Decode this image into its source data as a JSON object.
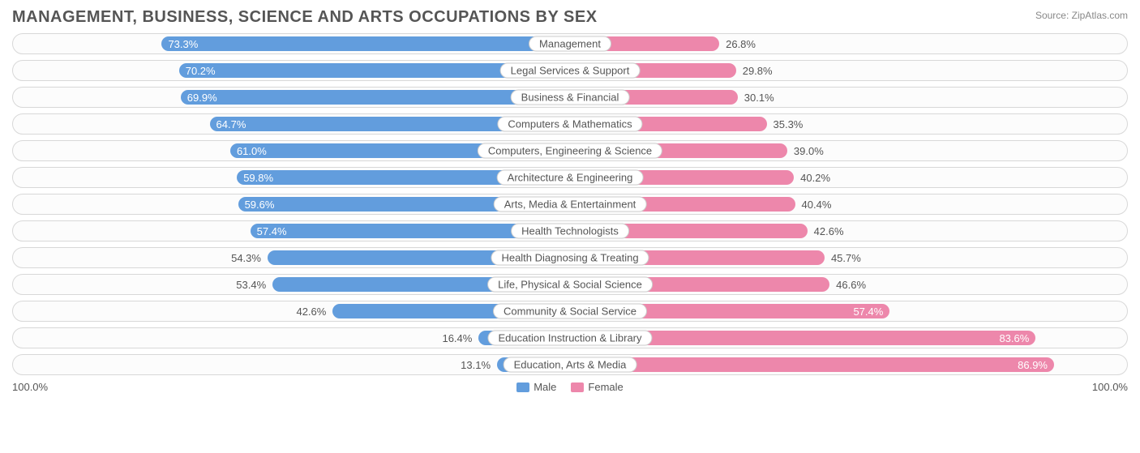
{
  "title": "MANAGEMENT, BUSINESS, SCIENCE AND ARTS OCCUPATIONS BY SEX",
  "source_label": "Source:",
  "source_name": "ZipAtlas.com",
  "axis_left": "100.0%",
  "axis_right": "100.0%",
  "legend": {
    "male": {
      "label": "Male",
      "color": "#629ddd"
    },
    "female": {
      "label": "Female",
      "color": "#ed87ab"
    }
  },
  "style": {
    "row_bg": "#fcfcfc",
    "row_border": "#d8d8d8",
    "catlabel_border": "#cccccc",
    "text_color": "#555555",
    "inside_threshold": 55.0,
    "font_size_title": 20,
    "font_size_body": 13
  },
  "rows": [
    {
      "category": "Management",
      "male": 73.3,
      "female": 26.8
    },
    {
      "category": "Legal Services & Support",
      "male": 70.2,
      "female": 29.8
    },
    {
      "category": "Business & Financial",
      "male": 69.9,
      "female": 30.1
    },
    {
      "category": "Computers & Mathematics",
      "male": 64.7,
      "female": 35.3
    },
    {
      "category": "Computers, Engineering & Science",
      "male": 61.0,
      "female": 39.0
    },
    {
      "category": "Architecture & Engineering",
      "male": 59.8,
      "female": 40.2
    },
    {
      "category": "Arts, Media & Entertainment",
      "male": 59.6,
      "female": 40.4
    },
    {
      "category": "Health Technologists",
      "male": 57.4,
      "female": 42.6
    },
    {
      "category": "Health Diagnosing & Treating",
      "male": 54.3,
      "female": 45.7
    },
    {
      "category": "Life, Physical & Social Science",
      "male": 53.4,
      "female": 46.6
    },
    {
      "category": "Community & Social Service",
      "male": 42.6,
      "female": 57.4
    },
    {
      "category": "Education Instruction & Library",
      "male": 16.4,
      "female": 83.6
    },
    {
      "category": "Education, Arts & Media",
      "male": 13.1,
      "female": 86.9
    }
  ]
}
